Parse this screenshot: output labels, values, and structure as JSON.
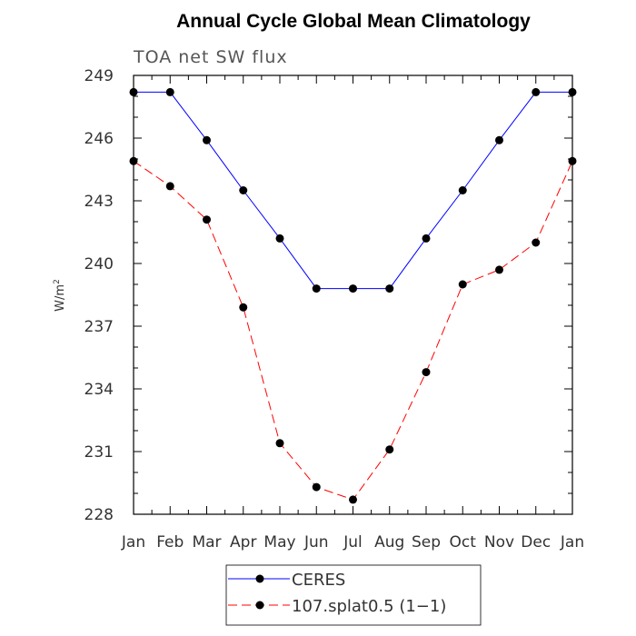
{
  "chart_data": {
    "type": "line",
    "title": "Annual Cycle Global Mean Climatology",
    "subtitle": "TOA net SW flux",
    "ylabel": "W/m",
    "ylabel_sup": "2",
    "categories": [
      "Jan",
      "Feb",
      "Mar",
      "Apr",
      "May",
      "Jun",
      "Jul",
      "Aug",
      "Sep",
      "Oct",
      "Nov",
      "Dec",
      "Jan"
    ],
    "ylim": [
      228,
      249
    ],
    "yticks": [
      228,
      231,
      234,
      237,
      240,
      243,
      246,
      249
    ],
    "grid": false,
    "legend_position": "bottom-center",
    "series": [
      {
        "name": "CERES",
        "color": "#0000ff",
        "dash": "solid",
        "marker": "filled-circle",
        "values": [
          248.2,
          248.2,
          245.9,
          243.5,
          241.2,
          238.8,
          238.8,
          238.8,
          241.2,
          243.5,
          245.9,
          248.2,
          248.2
        ]
      },
      {
        "name": "107.splat0.5 (1−1)",
        "color": "#ff0000",
        "dash": "dashed",
        "marker": "filled-circle",
        "values": [
          244.9,
          243.7,
          242.1,
          237.9,
          231.4,
          229.3,
          228.7,
          231.1,
          234.8,
          239.0,
          239.7,
          241.0,
          244.9
        ]
      }
    ]
  }
}
